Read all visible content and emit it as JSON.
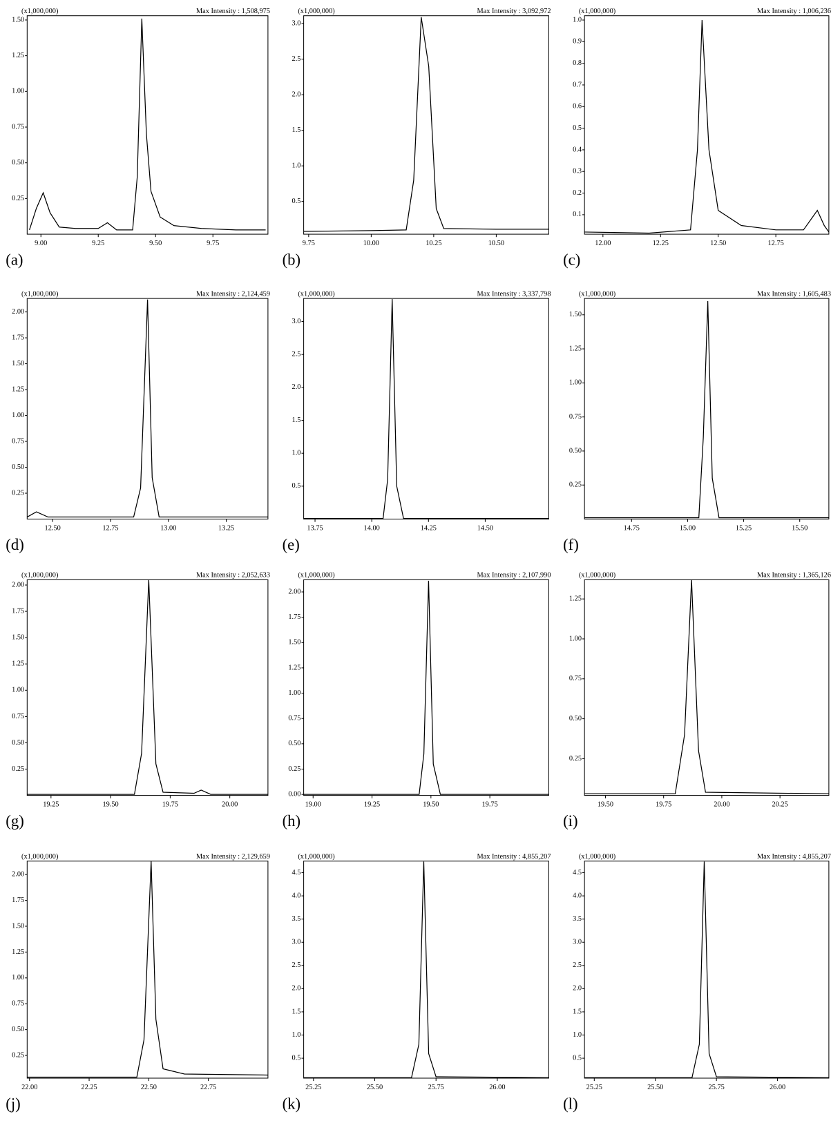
{
  "chart_data": [
    {
      "type": "line",
      "label": "(a)",
      "unit_label": "(x1,000,000)",
      "max_intensity": "Max Intensity : 1,508,975",
      "color": "#000000",
      "x": [
        8.95,
        8.98,
        9.01,
        9.04,
        9.08,
        9.15,
        9.25,
        9.29,
        9.33,
        9.4,
        9.42,
        9.44,
        9.46,
        9.48,
        9.52,
        9.58,
        9.7,
        9.85,
        9.98
      ],
      "values": [
        0.03,
        0.18,
        0.29,
        0.15,
        0.05,
        0.04,
        0.04,
        0.08,
        0.03,
        0.03,
        0.4,
        1.51,
        0.7,
        0.3,
        0.12,
        0.06,
        0.04,
        0.03,
        0.03
      ],
      "xlim": [
        8.94,
        9.99
      ],
      "ylim": [
        0,
        1.53
      ],
      "xticks": [
        {
          "value": 9,
          "label": "9.00"
        },
        9.25,
        {
          "value": 9.5,
          "label": "9.50"
        },
        9.75
      ],
      "yticks": [
        0.25,
        {
          "value": 0.5,
          "label": "0.50"
        },
        0.75,
        {
          "value": 1,
          "label": "1.00"
        },
        1.25,
        {
          "value": 1.5,
          "label": "1.50"
        }
      ]
    },
    {
      "type": "line",
      "label": "(b)",
      "unit_label": "(x1,000,000)",
      "max_intensity": "Max Intensity : 3,092,972",
      "color": "#000000",
      "x": [
        9.73,
        10.0,
        10.14,
        10.17,
        10.2,
        10.23,
        10.26,
        10.29,
        10.5,
        10.71
      ],
      "values": [
        0.08,
        0.09,
        0.1,
        0.8,
        3.09,
        2.4,
        0.4,
        0.12,
        0.11,
        0.11
      ],
      "xlim": [
        9.73,
        10.71
      ],
      "ylim": [
        0.04,
        3.11
      ],
      "xticks": [
        9.75,
        {
          "value": 10,
          "label": "10.00"
        },
        10.25,
        {
          "value": 10.5,
          "label": "10.50"
        }
      ],
      "yticks": [
        0.5,
        {
          "value": 1,
          "label": "1.0"
        },
        1.5,
        {
          "value": 2,
          "label": "2.0"
        },
        2.5,
        {
          "value": 3,
          "label": "3.0"
        }
      ]
    },
    {
      "type": "line",
      "label": "(c)",
      "unit_label": "(x1,000,000)",
      "max_intensity": "Max Intensity : 1,006,236",
      "color": "#000000",
      "x": [
        11.92,
        12.2,
        12.38,
        12.41,
        12.43,
        12.46,
        12.5,
        12.6,
        12.75,
        12.87,
        12.93,
        12.96,
        12.98
      ],
      "values": [
        0.02,
        0.015,
        0.03,
        0.4,
        1.0,
        0.4,
        0.12,
        0.05,
        0.03,
        0.03,
        0.12,
        0.05,
        0.02
      ],
      "xlim": [
        11.92,
        12.98
      ],
      "ylim": [
        0.01,
        1.02
      ],
      "xticks": [
        {
          "value": 12,
          "label": "12.00"
        },
        12.25,
        {
          "value": 12.5,
          "label": "12.50"
        },
        12.75
      ],
      "yticks": [
        0.1,
        0.2,
        0.3,
        0.4,
        0.5,
        0.6,
        0.7,
        0.8,
        0.9,
        {
          "value": 1,
          "label": "1.0"
        }
      ]
    },
    {
      "type": "line",
      "label": "(d)",
      "unit_label": "(x1,000,000)",
      "max_intensity": "Max Intensity : 2,124,459",
      "color": "#000000",
      "x": [
        12.39,
        12.43,
        12.48,
        12.85,
        12.88,
        12.91,
        12.93,
        12.96,
        13.43
      ],
      "values": [
        0.02,
        0.07,
        0.02,
        0.02,
        0.3,
        2.12,
        0.4,
        0.02,
        0.02
      ],
      "xlim": [
        12.39,
        13.43
      ],
      "ylim": [
        0,
        2.13
      ],
      "xticks": [
        {
          "value": 12.5,
          "label": "12.50"
        },
        12.75,
        {
          "value": 13,
          "label": "13.00"
        },
        13.25
      ],
      "yticks": [
        0.25,
        {
          "value": 0.5,
          "label": "0.50"
        },
        0.75,
        {
          "value": 1,
          "label": "1.00"
        },
        1.25,
        {
          "value": 1.5,
          "label": "1.50"
        },
        1.75,
        {
          "value": 2,
          "label": "2.00"
        }
      ]
    },
    {
      "type": "line",
      "label": "(e)",
      "unit_label": "(x1,000,000)",
      "max_intensity": "Max Intensity : 3,337,798",
      "color": "#000000",
      "x": [
        13.7,
        14.05,
        14.07,
        14.09,
        14.11,
        14.14,
        14.78
      ],
      "values": [
        0.01,
        0.01,
        0.6,
        3.34,
        0.5,
        0.01,
        0.01
      ],
      "xlim": [
        13.7,
        14.78
      ],
      "ylim": [
        0,
        3.35
      ],
      "xticks": [
        13.75,
        {
          "value": 14,
          "label": "14.00"
        },
        14.25,
        {
          "value": 14.5,
          "label": "14.50"
        }
      ],
      "yticks": [
        0.5,
        {
          "value": 1,
          "label": "1.0"
        },
        1.5,
        {
          "value": 2,
          "label": "2.0"
        },
        2.5,
        {
          "value": 3,
          "label": "3.0"
        }
      ]
    },
    {
      "type": "line",
      "label": "(f)",
      "unit_label": "(x1,000,000)",
      "max_intensity": "Max Intensity : 1,605,483",
      "color": "#000000",
      "x": [
        14.54,
        15.05,
        15.07,
        15.09,
        15.11,
        15.14,
        15.63
      ],
      "values": [
        0.01,
        0.01,
        0.6,
        1.6,
        0.3,
        0.01,
        0.01
      ],
      "xlim": [
        14.54,
        15.63
      ],
      "ylim": [
        0,
        1.62
      ],
      "xticks": [
        14.75,
        {
          "value": 15,
          "label": "15.00"
        },
        15.25,
        {
          "value": 15.5,
          "label": "15.50"
        }
      ],
      "yticks": [
        0.25,
        {
          "value": 0.5,
          "label": "0.50"
        },
        0.75,
        {
          "value": 1,
          "label": "1.00"
        },
        1.25,
        {
          "value": 1.5,
          "label": "1.50"
        }
      ]
    },
    {
      "type": "line",
      "label": "(g)",
      "unit_label": "(x1,000,000)",
      "max_intensity": "Max Intensity : 2,052,633",
      "color": "#000000",
      "x": [
        19.15,
        19.6,
        19.63,
        19.66,
        19.69,
        19.72,
        19.85,
        19.88,
        19.92,
        20.16
      ],
      "values": [
        0.01,
        0.01,
        0.4,
        2.05,
        0.3,
        0.03,
        0.02,
        0.05,
        0.01,
        0.01
      ],
      "xlim": [
        19.15,
        20.16
      ],
      "ylim": [
        0,
        2.05
      ],
      "xticks": [
        19.25,
        {
          "value": 19.5,
          "label": "19.50"
        },
        19.75,
        {
          "value": 20,
          "label": "20.00"
        }
      ],
      "yticks": [
        0.25,
        {
          "value": 0.5,
          "label": "0.50"
        },
        0.75,
        {
          "value": 1,
          "label": "1.00"
        },
        1.25,
        {
          "value": 1.5,
          "label": "1.50"
        },
        1.75,
        {
          "value": 2,
          "label": "2.00"
        }
      ]
    },
    {
      "type": "line",
      "label": "(h)",
      "unit_label": "(x1,000,000)",
      "max_intensity": "Max Intensity : 2,107,990",
      "color": "#000000",
      "x": [
        18.96,
        19.45,
        19.47,
        19.49,
        19.51,
        19.54,
        20.0
      ],
      "values": [
        0,
        0,
        0.4,
        2.11,
        0.3,
        0,
        0
      ],
      "xlim": [
        18.96,
        20.0
      ],
      "ylim": [
        -0.01,
        2.12
      ],
      "xticks": [
        {
          "value": 19,
          "label": "19.00"
        },
        19.25,
        {
          "value": 19.5,
          "label": "19.50"
        },
        19.75
      ],
      "yticks": [
        {
          "value": 0,
          "label": "0.00"
        },
        0.25,
        {
          "value": 0.5,
          "label": "0.50"
        },
        0.75,
        {
          "value": 1,
          "label": "1.00"
        },
        1.25,
        {
          "value": 1.5,
          "label": "1.50"
        },
        1.75,
        {
          "value": 2,
          "label": "2.00"
        }
      ]
    },
    {
      "type": "line",
      "label": "(i)",
      "unit_label": "(x1,000,000)",
      "max_intensity": "Max Intensity : 1,365,126",
      "color": "#000000",
      "x": [
        19.41,
        19.8,
        19.84,
        19.87,
        19.9,
        19.93,
        20.46
      ],
      "values": [
        0.03,
        0.03,
        0.4,
        1.37,
        0.3,
        0.04,
        0.03
      ],
      "xlim": [
        19.41,
        20.46
      ],
      "ylim": [
        0.02,
        1.37
      ],
      "xticks": [
        {
          "value": 19.5,
          "label": "19.50"
        },
        19.75,
        {
          "value": 20,
          "label": "20.00"
        },
        20.25
      ],
      "yticks": [
        0.25,
        {
          "value": 0.5,
          "label": "0.50"
        },
        0.75,
        {
          "value": 1,
          "label": "1.00"
        },
        1.25
      ]
    },
    {
      "type": "line",
      "label": "(j)",
      "unit_label": "(x1,000,000)",
      "max_intensity": "Max Intensity : 2,129,659",
      "color": "#000000",
      "x": [
        21.99,
        22.45,
        22.48,
        22.51,
        22.53,
        22.56,
        22.65,
        23.0
      ],
      "values": [
        0.04,
        0.04,
        0.4,
        2.13,
        0.6,
        0.12,
        0.07,
        0.06
      ],
      "xlim": [
        21.99,
        23.0
      ],
      "ylim": [
        0.03,
        2.13
      ],
      "xticks": [
        {
          "value": 22,
          "label": "22.00"
        },
        22.25,
        {
          "value": 22.5,
          "label": "22.50"
        },
        22.75
      ],
      "yticks": [
        0.25,
        {
          "value": 0.5,
          "label": "0.50"
        },
        0.75,
        {
          "value": 1,
          "label": "1.00"
        },
        1.25,
        {
          "value": 1.5,
          "label": "1.50"
        },
        1.75,
        {
          "value": 2,
          "label": "2.00"
        }
      ]
    },
    {
      "type": "line",
      "label": "(k)",
      "unit_label": "(x1,000,000)",
      "max_intensity": "Max Intensity : 4,855,207",
      "color": "#000000",
      "x": [
        25.21,
        25.65,
        25.68,
        25.7,
        25.72,
        25.75,
        26.21
      ],
      "values": [
        0.08,
        0.08,
        0.8,
        4.74,
        0.6,
        0.1,
        0.08
      ],
      "xlim": [
        25.21,
        26.21
      ],
      "ylim": [
        0.07,
        4.75
      ],
      "xticks": [
        25.25,
        {
          "value": 25.5,
          "label": "25.50"
        },
        25.75,
        {
          "value": 26,
          "label": "26.00"
        }
      ],
      "yticks": [
        0.5,
        {
          "value": 1,
          "label": "1.0"
        },
        1.5,
        {
          "value": 2,
          "label": "2.0"
        },
        2.5,
        {
          "value": 3,
          "label": "3.0"
        },
        3.5,
        {
          "value": 4,
          "label": "4.0"
        },
        4.5
      ]
    },
    {
      "type": "line",
      "label": "(l)",
      "unit_label": "(x1,000,000)",
      "max_intensity": "Max Intensity : 4,855,207",
      "color": "#000000",
      "x": [
        25.21,
        25.65,
        25.68,
        25.7,
        25.72,
        25.75,
        26.21
      ],
      "values": [
        0.08,
        0.08,
        0.8,
        4.74,
        0.6,
        0.1,
        0.08
      ],
      "xlim": [
        25.21,
        26.21
      ],
      "ylim": [
        0.07,
        4.75
      ],
      "xticks": [
        25.25,
        {
          "value": 25.5,
          "label": "25.50"
        },
        25.75,
        {
          "value": 26,
          "label": "26.00"
        }
      ],
      "yticks": [
        0.5,
        {
          "value": 1,
          "label": "1.0"
        },
        1.5,
        {
          "value": 2,
          "label": "2.0"
        },
        2.5,
        {
          "value": 3,
          "label": "3.0"
        },
        3.5,
        {
          "value": 4,
          "label": "4.0"
        },
        4.5
      ]
    }
  ]
}
